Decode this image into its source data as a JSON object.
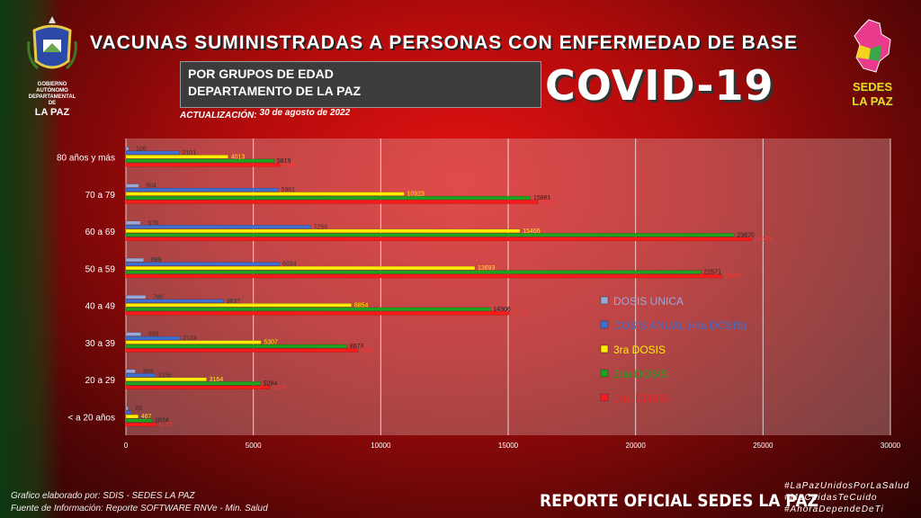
{
  "header": {
    "title": "VACUNAS SUMINISTRADAS A PERSONAS CON ENFERMEDAD DE BASE",
    "subtitle_line1": "POR GRUPOS DE EDAD",
    "subtitle_line2": "DEPARTAMENTO DE LA PAZ",
    "covid_label": "COVID-19",
    "update_label": "ACTUALIZACIÓN:",
    "update_date": "30 de agosto de 2022"
  },
  "logos": {
    "left_text_1": "GOBIERNO AUTÓNOMO",
    "left_text_2": "DEPARTAMENTAL DE",
    "left_text_3": "LA PAZ",
    "right_text_1": "SEDES",
    "right_text_2": "LA PAZ"
  },
  "footer": {
    "credit": "Grafico elaborado por: SDIS - SEDES LA PAZ",
    "source": "Fuente de Información: Reporte SOFTWARE RNVe - Min. Salud",
    "report": "REPORTE OFICIAL SEDES LA PAZ",
    "hashtags": [
      "#LaPazUnidosPorLaSalud",
      "#MeCuidasTeCuido",
      "#AhoraDependeDeTi"
    ]
  },
  "chart_data": {
    "type": "bar",
    "orientation": "horizontal",
    "categories": [
      "80 años y más",
      "70 a 79",
      "60 a 69",
      "50 a 59",
      "40 a 49",
      "30 a 39",
      "20 a 29",
      "< a 20 años"
    ],
    "series": [
      {
        "name": "DOSIS UNICA",
        "color": "#9aa8d8",
        "values": [
          106,
          504,
          576,
          699,
          780,
          595,
          369,
          86
        ]
      },
      {
        "name": "DOSIS ANUAL (4ta DOSIS)",
        "color": "#3f6fd1",
        "values": [
          2101,
          5981,
          7256,
          6034,
          3837,
          2124,
          1156,
          200
        ]
      },
      {
        "name": "3ra DOSIS",
        "color": "#ffee00",
        "values": [
          4013,
          10923,
          15466,
          13693,
          8854,
          5307,
          3164,
          487
        ]
      },
      {
        "name": "2da DOSIS",
        "color": "#1fa31f",
        "values": [
          5819,
          15881,
          23870,
          22571,
          14306,
          8673,
          5284,
          1024
        ]
      },
      {
        "name": "1ra. DOSIS",
        "color": "#ff1a1a",
        "values": [
          6040,
          16167,
          24549,
          23379,
          15025,
          9110,
          5626,
          1172
        ]
      }
    ],
    "labels": [
      [
        "106",
        "504",
        "576",
        "699",
        "780",
        "595",
        "369",
        "86"
      ],
      [
        "2101",
        "5981",
        "7256",
        "6034",
        "3837",
        "2124",
        "1156",
        ""
      ],
      [
        "4013",
        "10923",
        "15466",
        "13693",
        "8854",
        "5307",
        "3164",
        "487"
      ],
      [
        "5819",
        "15881",
        "23870",
        "22571",
        "14306",
        "8673",
        "5284",
        "1024"
      ],
      [
        "6040",
        "16167",
        "24549",
        "23379",
        "15025",
        "9110",
        "5626",
        "1172"
      ]
    ],
    "xlim": [
      0,
      30000
    ],
    "xticks": [
      0,
      5000,
      10000,
      15000,
      20000,
      25000,
      30000
    ],
    "grid": true,
    "legend_position": "right-lower"
  }
}
